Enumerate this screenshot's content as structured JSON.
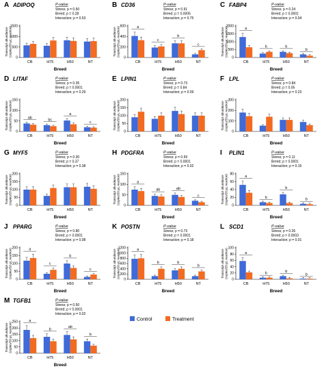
{
  "colors": {
    "control": "#3f6ad8",
    "treatment": "#f26b21"
  },
  "legend": {
    "control": "Control",
    "treatment": "Treatment"
  },
  "categories": [
    "CB",
    "H75",
    "H50",
    "NT"
  ],
  "pvalue_label": "P-value",
  "ylabel_line1": "Transcript abundance",
  "ylabel_line2": "(copies/20 µL reaction)",
  "chart_data": [
    {
      "type": "bar",
      "panel": "A",
      "title": "ADIPOQ",
      "xlabel": "Breed",
      "ylim": [
        0,
        1500
      ],
      "yticks": [
        0,
        500,
        1000,
        1500
      ],
      "categories": [
        "CB",
        "H75",
        "H50",
        "NT"
      ],
      "series": [
        {
          "name": "Control",
          "values": [
            580,
            560,
            820,
            760
          ]
        },
        {
          "name": "Treatment",
          "values": [
            650,
            810,
            790,
            780
          ]
        }
      ],
      "stats": [
        "Stress;  p = 0.50",
        "Breed;  p = 0.28",
        "Interaction;  p = 0.53"
      ],
      "letters": []
    },
    {
      "type": "bar",
      "panel": "B",
      "title": "CD36",
      "xlabel": "Breed",
      "ylim": [
        0,
        600
      ],
      "yticks": [
        0,
        200,
        400,
        600
      ],
      "categories": [
        "CB",
        "H75",
        "H50",
        "NT"
      ],
      "series": [
        {
          "name": "Control",
          "values": [
            410,
            190,
            270,
            60
          ]
        },
        {
          "name": "Treatment",
          "values": [
            330,
            210,
            270,
            140
          ]
        }
      ],
      "stats": [
        "Stress;  p = 0.91",
        "Breed;  p = 0.0005",
        "Interaction;  p = 0.75"
      ],
      "letters": [
        "a",
        "c",
        "b",
        "c"
      ]
    },
    {
      "type": "bar",
      "panel": "C",
      "title": "FABP4",
      "xlabel": "Breed",
      "ylim": [
        0,
        2000
      ],
      "yticks": [
        0,
        500,
        1000,
        1500,
        2000
      ],
      "categories": [
        "CB",
        "H75",
        "H50",
        "NT"
      ],
      "series": [
        {
          "name": "Control",
          "values": [
            1300,
            250,
            360,
            200
          ]
        },
        {
          "name": "Treatment",
          "values": [
            650,
            360,
            280,
            120
          ]
        }
      ],
      "stats": [
        "Stress;  p = 0.24",
        "Breed;  p = 0.0001",
        "Interaction;  p = 0.04"
      ],
      "letters": [
        "a",
        "b",
        "b",
        "b"
      ]
    },
    {
      "type": "bar",
      "panel": "D",
      "title": "LITAF",
      "xlabel": "Breed",
      "ylim": [
        0,
        150
      ],
      "yticks": [
        0,
        50,
        100,
        150
      ],
      "categories": [
        "CB",
        "H75",
        "H50",
        "NT"
      ],
      "series": [
        {
          "name": "Control",
          "values": [
            38,
            30,
            52,
            20
          ]
        },
        {
          "name": "Treatment",
          "values": [
            32,
            25,
            34,
            18
          ]
        }
      ],
      "stats": [
        "Stress;  p = 0.35",
        "Breed;  p = 0.0001",
        "Interaction;  p = 0.29"
      ],
      "letters": [
        "ab",
        "bc",
        "a",
        "c"
      ]
    },
    {
      "type": "bar",
      "panel": "E",
      "title": "LPIN1",
      "xlabel": "Breed",
      "ylim": [
        0,
        200
      ],
      "yticks": [
        0,
        50,
        100,
        150,
        200
      ],
      "categories": [
        "CB",
        "H75",
        "H50",
        "NT"
      ],
      "series": [
        {
          "name": "Control",
          "values": [
            90,
            80,
            130,
            100
          ]
        },
        {
          "name": "Treatment",
          "values": [
            125,
            100,
            110,
            100
          ]
        }
      ],
      "stats": [
        "Stress;  p = 0.73",
        "Breed;  p = 0.84",
        "Interaction;  p = 0.09"
      ],
      "letters": []
    },
    {
      "type": "bar",
      "panel": "F",
      "title": "LPL",
      "xlabel": "Breed",
      "ylim": [
        0,
        300
      ],
      "yticks": [
        0,
        100,
        200,
        300
      ],
      "categories": [
        "CB",
        "H75",
        "H50",
        "NT"
      ],
      "series": [
        {
          "name": "Control",
          "values": [
            180,
            55,
            110,
            90
          ]
        },
        {
          "name": "Treatment",
          "values": [
            145,
            140,
            110,
            60
          ]
        }
      ],
      "stats": [
        "Stress;  p = 0.84",
        "Breed;  p = 0.05",
        "Interaction;  p = 0.23"
      ],
      "letters": []
    },
    {
      "type": "bar",
      "panel": "G",
      "title": "MYF5",
      "xlabel": "Breed",
      "ylim": [
        0,
        200
      ],
      "yticks": [
        0,
        50,
        100,
        150,
        200
      ],
      "categories": [
        "CB",
        "H75",
        "H50",
        "NT"
      ],
      "series": [
        {
          "name": "Control",
          "values": [
            100,
            60,
            115,
            118
          ]
        },
        {
          "name": "Treatment",
          "values": [
            100,
            110,
            115,
            105
          ]
        }
      ],
      "stats": [
        "Stress;  p = 0.30",
        "Breed;  p = 0.37",
        "Interaction;  p = 0.38"
      ],
      "letters": []
    },
    {
      "type": "bar",
      "panel": "H",
      "title": "PDGFRA",
      "xlabel": "Breed",
      "ylim": [
        0,
        150
      ],
      "yticks": [
        0,
        50,
        100,
        150
      ],
      "categories": [
        "CB",
        "H75",
        "H50",
        "NT"
      ],
      "series": [
        {
          "name": "Control",
          "values": [
            75,
            45,
            50,
            22
          ]
        },
        {
          "name": "Treatment",
          "values": [
            68,
            42,
            40,
            15
          ]
        }
      ],
      "stats": [
        "Stress;  p = 0.59",
        "Breed;  p = 0.0001",
        "Interaction;  p = 0.02"
      ],
      "letters": [
        "a",
        "ab",
        "ab",
        "c"
      ]
    },
    {
      "type": "bar",
      "panel": "I",
      "title": "PLIN1",
      "xlabel": "Breed",
      "ylim": [
        0,
        80
      ],
      "yticks": [
        0,
        20,
        40,
        60,
        80
      ],
      "categories": [
        "CB",
        "H75",
        "H50",
        "NT"
      ],
      "series": [
        {
          "name": "Control",
          "values": [
            52,
            8,
            28,
            4
          ]
        },
        {
          "name": "Treatment",
          "values": [
            32,
            6,
            6,
            3
          ]
        }
      ],
      "stats": [
        "Stress;  p = 0.11",
        "Breed;  p = 0.0001",
        "Interaction;  p = 0.15"
      ],
      "letters": [
        "a",
        "b",
        "b",
        "b"
      ]
    },
    {
      "type": "bar",
      "panel": "J",
      "title": "PPARG",
      "xlabel": "Breed",
      "ylim": [
        0,
        200
      ],
      "yticks": [
        0,
        50,
        100,
        150,
        200
      ],
      "categories": [
        "CB",
        "H75",
        "H50",
        "NT"
      ],
      "series": [
        {
          "name": "Control",
          "values": [
            118,
            35,
            100,
            15
          ]
        },
        {
          "name": "Treatment",
          "values": [
            135,
            60,
            72,
            30
          ]
        }
      ],
      "stats": [
        "Stress;  p = 0.80",
        "Breed;  p = 0.0001",
        "Interaction;  p = 0.08"
      ],
      "letters": [
        "a",
        "c",
        "b",
        "c"
      ]
    },
    {
      "type": "bar",
      "panel": "K",
      "title": "POSTN",
      "xlabel": "Breed",
      "ylim": [
        0,
        1200
      ],
      "yticks": [
        0,
        200,
        400,
        600,
        800,
        1000,
        1200
      ],
      "categories": [
        "CB",
        "H75",
        "H50",
        "NT"
      ],
      "series": [
        {
          "name": "Control",
          "values": [
            780,
            120,
            340,
            120
          ]
        },
        {
          "name": "Treatment",
          "values": [
            800,
            400,
            400,
            300
          ]
        }
      ],
      "stats": [
        "Stress;  p = 0.73",
        "Breed;  p = 0.0001",
        "Interaction;  p = 0.18"
      ],
      "letters": [
        "a",
        "b",
        "b",
        "b"
      ]
    },
    {
      "type": "bar",
      "panel": "L",
      "title": "SCD1",
      "xlabel": "Breed",
      "ylim": [
        0,
        100
      ],
      "yticks": [
        0,
        20,
        40,
        60,
        80,
        100
      ],
      "categories": [
        "CB",
        "H75",
        "H50",
        "NT"
      ],
      "series": [
        {
          "name": "Control",
          "values": [
            58,
            5,
            10,
            2
          ]
        },
        {
          "name": "Treatment",
          "values": [
            22,
            5,
            3,
            2
          ]
        }
      ],
      "stats": [
        "Stress;  p = 0.26",
        "Breed;  p = 0.0003",
        "Interaction;  p = 0.01"
      ],
      "letters": [
        "a",
        "b",
        "b",
        "b"
      ]
    },
    {
      "type": "bar",
      "panel": "M",
      "title": "TGFB1",
      "xlabel": "Breed",
      "ylim": [
        0,
        250
      ],
      "yticks": [
        0,
        50,
        100,
        150,
        200,
        250
      ],
      "categories": [
        "CB",
        "H75",
        "H50",
        "NT"
      ],
      "series": [
        {
          "name": "Control",
          "values": [
            185,
            130,
            145,
            95
          ]
        },
        {
          "name": "Treatment",
          "values": [
            120,
            95,
            110,
            60
          ]
        }
      ],
      "stats": [
        "Stress;  p = 0.50",
        "Breed;  p = 0.0001",
        "Interaction;  p = 0.02"
      ],
      "letters": [
        "a",
        "b",
        "ab",
        "b"
      ]
    }
  ]
}
